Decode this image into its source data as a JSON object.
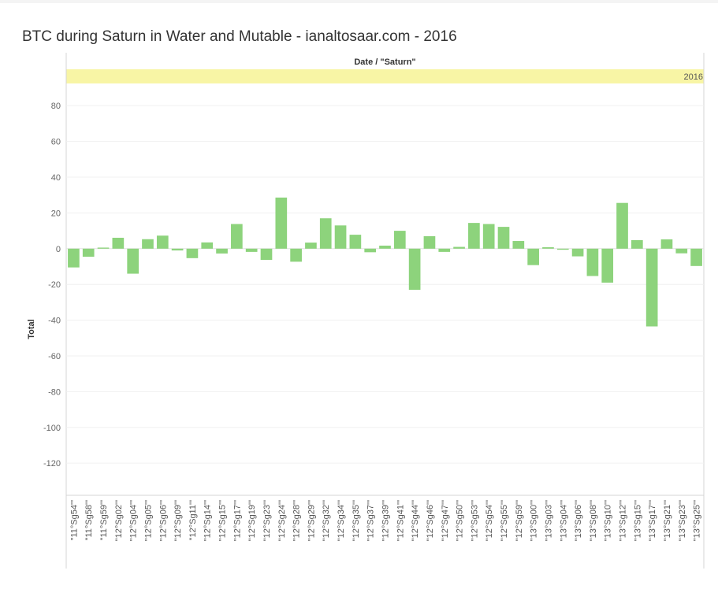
{
  "chart_data": {
    "type": "bar",
    "title": "BTC during Saturn in Water and Mutable - ianaltosaar.com - 2016",
    "header": "Date / \"Saturn\"",
    "column_header": "2016",
    "xlabel": "",
    "ylabel": "Total",
    "ylim": [
      -138,
      92
    ],
    "yticks": [
      80,
      60,
      40,
      20,
      0,
      -20,
      -40,
      -60,
      -80,
      -100,
      -120
    ],
    "grid": true,
    "bar_color": "#8dd37c",
    "header_band_color": "#f8f5a5",
    "categories": [
      "\"11°Sg54'\"",
      "\"11°Sg58'\"",
      "\"11°Sg59'\"",
      "\"12°Sg02'\"",
      "\"12°Sg04'\"",
      "\"12°Sg05'\"",
      "\"12°Sg06'\"",
      "\"12°Sg09'\"",
      "\"12°Sg11'\"",
      "\"12°Sg14'\"",
      "\"12°Sg15'\"",
      "\"12°Sg17'\"",
      "\"12°Sg19'\"",
      "\"12°Sg23'\"",
      "\"12°Sg24'\"",
      "\"12°Sg28'\"",
      "\"12°Sg29'\"",
      "\"12°Sg32'\"",
      "\"12°Sg34'\"",
      "\"12°Sg35'\"",
      "\"12°Sg37'\"",
      "\"12°Sg39'\"",
      "\"12°Sg41'\"",
      "\"12°Sg44'\"",
      "\"12°Sg46'\"",
      "\"12°Sg47'\"",
      "\"12°Sg50'\"",
      "\"12°Sg53'\"",
      "\"12°Sg54'\"",
      "\"12°Sg55'\"",
      "\"12°Sg59'\"",
      "\"13°Sg00'\"",
      "\"13°Sg03'\"",
      "\"13°Sg04'\"",
      "\"13°Sg06'\"",
      "\"13°Sg08'\"",
      "\"13°Sg10'\"",
      "\"13°Sg12'\"",
      "\"13°Sg15'\"",
      "\"13°Sg17'\"",
      "\"13°Sg21'\"",
      "\"13°Sg23'\"",
      "\"13°Sg25'\""
    ],
    "values": [
      -10.5,
      -4.5,
      0.6,
      6.1,
      -14,
      5.3,
      7.3,
      -1,
      -5.3,
      3.5,
      -2.7,
      13.8,
      -1.8,
      -6.3,
      28.6,
      -7.3,
      3.4,
      17,
      13,
      7.8,
      -2,
      1.7,
      10,
      -23,
      7,
      -1.8,
      1,
      14.4,
      13.8,
      12.2,
      4.3,
      -9.2,
      0.8,
      -0.6,
      -4.3,
      -15.3,
      -19,
      25.6,
      4.8,
      -43.5,
      5.2,
      -2.6,
      -9.7
    ]
  }
}
